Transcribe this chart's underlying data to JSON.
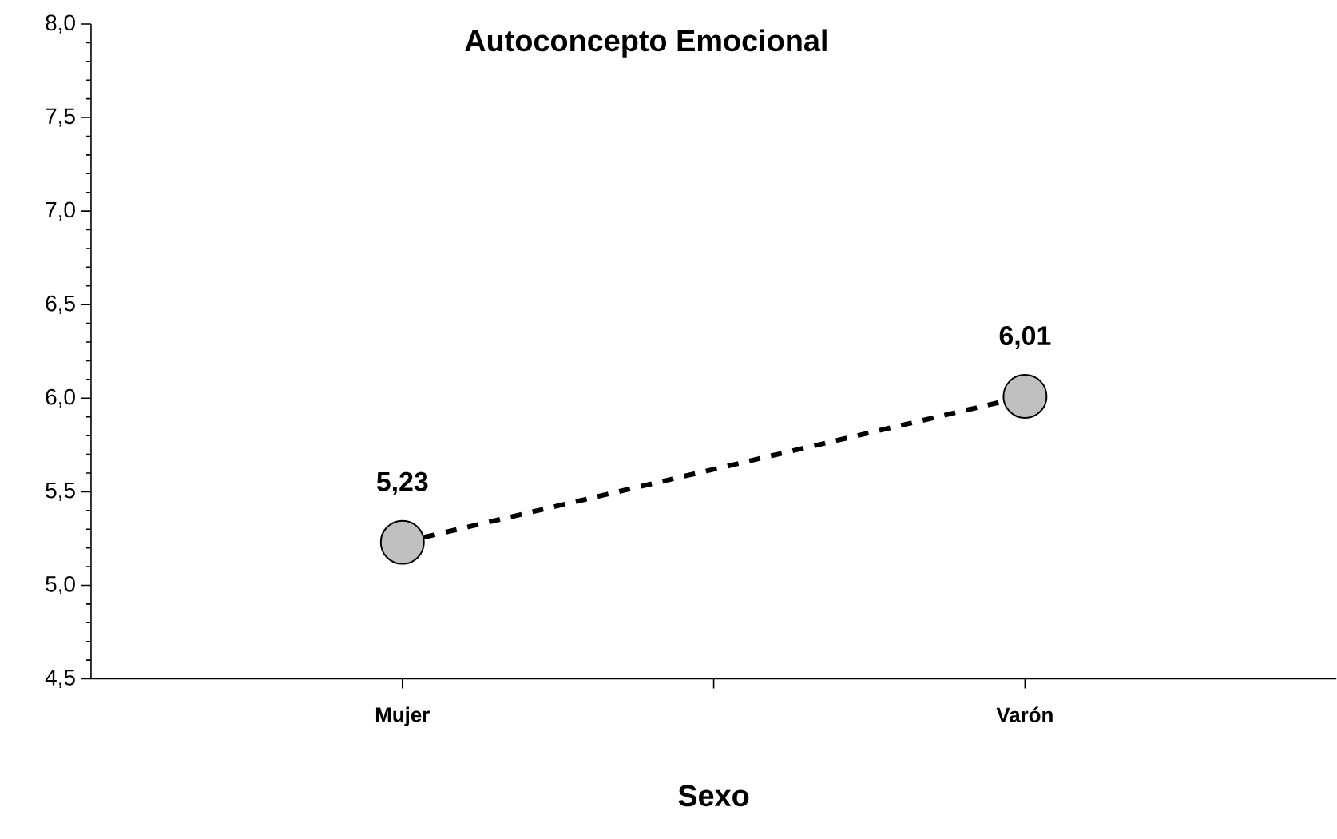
{
  "chart_data": {
    "type": "line",
    "title": "Autoconcepto Emocional",
    "xlabel": "Sexo",
    "categories": [
      "Mujer",
      "Varón"
    ],
    "series": [
      {
        "color": "#c0c0c0",
        "values": [
          5.23,
          6.01
        ],
        "value_labels": [
          "5,23",
          "6,01"
        ]
      }
    ],
    "marker": "circle",
    "line_style": "dashed",
    "ylim": [
      4.5,
      8.0
    ],
    "yticks": [
      {
        "value": 4.5,
        "label": "4,5"
      },
      {
        "value": 5.0,
        "label": "5,0"
      },
      {
        "value": 5.5,
        "label": "5,5"
      },
      {
        "value": 6.0,
        "label": "6,0"
      },
      {
        "value": 6.5,
        "label": "6,5"
      },
      {
        "value": 7.0,
        "label": "7,0"
      },
      {
        "value": 7.5,
        "label": "7,5"
      },
      {
        "value": 8.0,
        "label": "8,0"
      }
    ]
  }
}
